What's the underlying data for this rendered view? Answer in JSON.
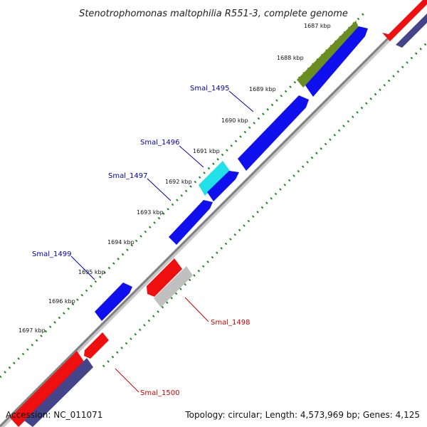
{
  "title": "Stenotrophomonas maltophilia R551-3, complete genome",
  "footer": {
    "accession": "Accession: NC_011071",
    "topology": "Topology: circular; Length: 4,573,969 bp; Genes: 4,125"
  },
  "colors": {
    "cds_forward": "#1010ee",
    "cds_reverse": "#ee1010",
    "rrna": "#6b8e23",
    "trna": "#22e0e8",
    "pseudo": "#c0c0c0",
    "reverse_band": "#44448a",
    "backbone": "#808080",
    "dots": "#1a8a1a",
    "forward_label": "#0000aa",
    "reverse_label": "#cc0000"
  },
  "ticks": [
    "1687 kbp",
    "1688 kbp",
    "1689 kbp",
    "1690 kbp",
    "1691 kbp",
    "1692 kbp",
    "1693 kbp",
    "1694 kbp",
    "1695 kbp",
    "1696 kbp",
    "1697 kbp"
  ],
  "gene_labels": [
    {
      "text": "Smal_1495",
      "strand": "forward"
    },
    {
      "text": "Smal_1496",
      "strand": "forward"
    },
    {
      "text": "Smal_1497",
      "strand": "forward"
    },
    {
      "text": "Smal_1499",
      "strand": "forward"
    },
    {
      "text": "Smal_1498",
      "strand": "reverse"
    },
    {
      "text": "Smal_1500",
      "strand": "reverse"
    }
  ]
}
